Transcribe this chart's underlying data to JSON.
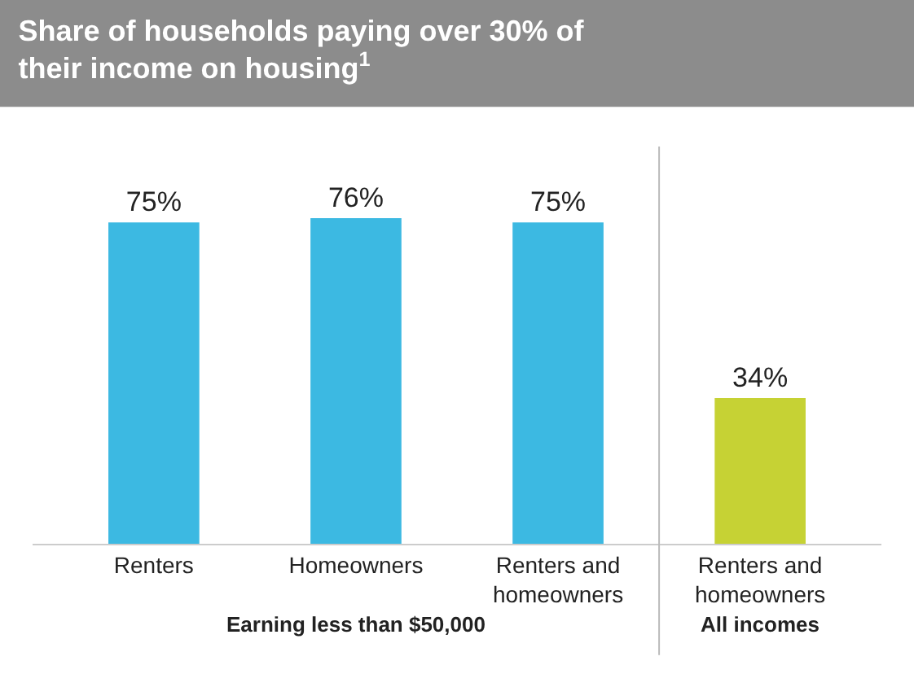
{
  "chart_data": {
    "type": "bar",
    "title": "Share of households paying over 30% of their income on housing$^{1}$",
    "categories": [
      "Renters",
      "Homeowners",
      "Renters and homeowners",
      "Renters and homeowners"
    ],
    "values": [
      75,
      76,
      75,
      34
    ],
    "colors": [
      "#3cb9e2",
      "#3cb9e2",
      "#3cb9e2",
      "#c6d234"
    ],
    "value_labels": [
      "75%",
      "76%",
      "75%",
      "34%"
    ],
    "annotations": [
      "Earning less than $50,000",
      "All incomes"
    ],
    "legend": false
  }
}
